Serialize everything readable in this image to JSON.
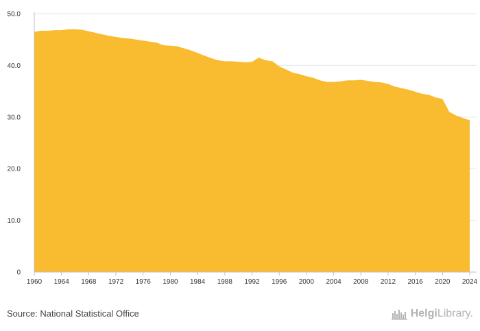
{
  "footer": {
    "source": "Source: National Statistical Office",
    "brand_bold": "Helgi",
    "brand_light": "Library."
  },
  "colors": {
    "area": "#F9BB30",
    "grid": "#e6e6e6",
    "axis": "#bfbfbf",
    "logo": "#b3b3b3"
  },
  "icons": {
    "brand_logo": "helgilibrary-logo-icon"
  },
  "chart_data": {
    "type": "area",
    "title": "",
    "xlabel": "",
    "ylabel": "",
    "xlim": [
      1960,
      2024
    ],
    "ylim": [
      0,
      50
    ],
    "grid": true,
    "legend": "none",
    "y_ticks": [
      0,
      10,
      20,
      30,
      40,
      50
    ],
    "y_tick_labels": [
      "0",
      "10.0",
      "20.0",
      "30.0",
      "40.0",
      "50.0"
    ],
    "x_ticks": [
      1960,
      1964,
      1968,
      1972,
      1976,
      1980,
      1984,
      1988,
      1992,
      1996,
      2000,
      2004,
      2008,
      2012,
      2016,
      2020,
      2024
    ],
    "x_tick_labels": [
      "1960",
      "1964",
      "1968",
      "1972",
      "1976",
      "1980",
      "1984",
      "1988",
      "1992",
      "1996",
      "2000",
      "2004",
      "2008",
      "2012",
      "2016",
      "2020",
      "2024"
    ],
    "x": [
      1960,
      1961,
      1962,
      1963,
      1964,
      1965,
      1966,
      1967,
      1968,
      1969,
      1970,
      1971,
      1972,
      1973,
      1974,
      1975,
      1976,
      1977,
      1978,
      1979,
      1980,
      1981,
      1982,
      1983,
      1984,
      1985,
      1986,
      1987,
      1988,
      1989,
      1990,
      1991,
      1992,
      1993,
      1994,
      1995,
      1996,
      1997,
      1998,
      1999,
      2000,
      2001,
      2002,
      2003,
      2004,
      2005,
      2006,
      2007,
      2008,
      2009,
      2010,
      2011,
      2012,
      2013,
      2014,
      2015,
      2016,
      2017,
      2018,
      2019,
      2020,
      2021,
      2022,
      2023,
      2024
    ],
    "series": [
      {
        "values": [
          46.5,
          46.7,
          46.7,
          46.8,
          46.8,
          47.0,
          47.0,
          46.9,
          46.6,
          46.3,
          46.0,
          45.7,
          45.5,
          45.3,
          45.2,
          45.0,
          44.8,
          44.6,
          44.4,
          43.9,
          43.8,
          43.7,
          43.3,
          42.9,
          42.4,
          41.9,
          41.4,
          41.0,
          40.8,
          40.8,
          40.7,
          40.6,
          40.7,
          41.5,
          41.0,
          40.8,
          39.8,
          39.2,
          38.6,
          38.3,
          37.9,
          37.6,
          37.1,
          36.8,
          36.8,
          36.9,
          37.1,
          37.1,
          37.2,
          37.0,
          36.8,
          36.7,
          36.4,
          35.9,
          35.6,
          35.3,
          34.9,
          34.5,
          34.3,
          33.8,
          33.5,
          31.0,
          30.3,
          29.8,
          29.4
        ]
      }
    ]
  }
}
